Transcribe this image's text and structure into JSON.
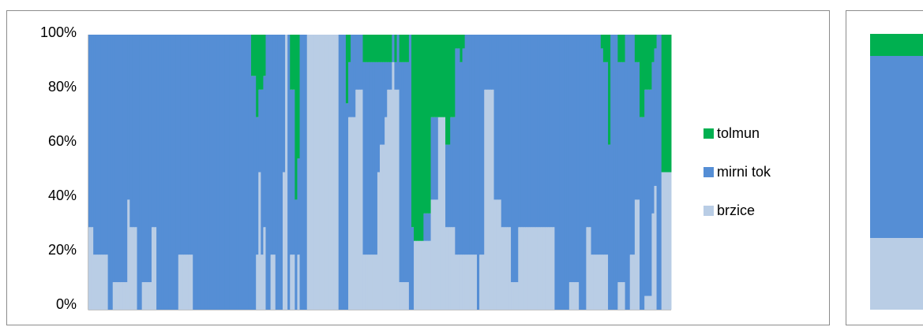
{
  "colors": {
    "tolmun": "#00b050",
    "mirni_tok": "#558ed5",
    "brzice": "#b9cde5",
    "frame": "#8c8c8c"
  },
  "chart_data": [
    {
      "type": "bar",
      "stacked": "percent",
      "title": "",
      "xlabel": "",
      "ylabel": "",
      "ylim": [
        0,
        100
      ],
      "y_tick_labels": [
        "0%",
        "20%",
        "40%",
        "60%",
        "80%",
        "100%"
      ],
      "grid": false,
      "legend_position": "right",
      "series_order_bottom_to_top": [
        "brzice",
        "mirni tok",
        "tolmun"
      ],
      "legend": [
        "tolmun",
        "mirni tok",
        "brzice"
      ],
      "bars": [
        [
          30,
          70,
          0
        ],
        [
          30,
          70,
          0
        ],
        [
          20,
          80,
          0
        ],
        [
          20,
          80,
          0
        ],
        [
          20,
          80,
          0
        ],
        [
          20,
          80,
          0
        ],
        [
          20,
          80,
          0
        ],
        [
          20,
          80,
          0
        ],
        [
          0,
          100,
          0
        ],
        [
          0,
          100,
          0
        ],
        [
          10,
          90,
          0
        ],
        [
          10,
          90,
          0
        ],
        [
          10,
          90,
          0
        ],
        [
          10,
          90,
          0
        ],
        [
          10,
          90,
          0
        ],
        [
          10,
          90,
          0
        ],
        [
          40,
          60,
          0
        ],
        [
          30,
          70,
          0
        ],
        [
          30,
          70,
          0
        ],
        [
          30,
          70,
          0
        ],
        [
          0,
          100,
          0
        ],
        [
          0,
          100,
          0
        ],
        [
          10,
          90,
          0
        ],
        [
          10,
          90,
          0
        ],
        [
          10,
          90,
          0
        ],
        [
          10,
          90,
          0
        ],
        [
          30,
          70,
          0
        ],
        [
          30,
          70,
          0
        ],
        [
          0,
          100,
          0
        ],
        [
          0,
          100,
          0
        ],
        [
          0,
          100,
          0
        ],
        [
          0,
          100,
          0
        ],
        [
          0,
          100,
          0
        ],
        [
          0,
          100,
          0
        ],
        [
          0,
          100,
          0
        ],
        [
          0,
          100,
          0
        ],
        [
          0,
          100,
          0
        ],
        [
          20,
          80,
          0
        ],
        [
          20,
          80,
          0
        ],
        [
          20,
          80,
          0
        ],
        [
          20,
          80,
          0
        ],
        [
          20,
          80,
          0
        ],
        [
          20,
          80,
          0
        ],
        [
          0,
          100,
          0
        ],
        [
          0,
          100,
          0
        ],
        [
          0,
          100,
          0
        ],
        [
          0,
          100,
          0
        ],
        [
          0,
          100,
          0
        ],
        [
          0,
          100,
          0
        ],
        [
          0,
          100,
          0
        ],
        [
          0,
          100,
          0
        ],
        [
          0,
          100,
          0
        ],
        [
          0,
          100,
          0
        ],
        [
          0,
          100,
          0
        ],
        [
          0,
          100,
          0
        ],
        [
          0,
          100,
          0
        ],
        [
          0,
          100,
          0
        ],
        [
          0,
          100,
          0
        ],
        [
          0,
          100,
          0
        ],
        [
          0,
          100,
          0
        ],
        [
          0,
          100,
          0
        ],
        [
          0,
          100,
          0
        ],
        [
          0,
          100,
          0
        ],
        [
          0,
          100,
          0
        ],
        [
          0,
          100,
          0
        ],
        [
          0,
          100,
          0
        ],
        [
          0,
          100,
          0
        ],
        [
          0,
          85,
          15
        ],
        [
          0,
          85,
          15
        ],
        [
          20,
          50,
          30
        ],
        [
          50,
          30,
          20
        ],
        [
          20,
          60,
          20
        ],
        [
          30,
          55,
          15
        ],
        [
          0,
          100,
          0
        ],
        [
          0,
          100,
          0
        ],
        [
          20,
          80,
          0
        ],
        [
          20,
          80,
          0
        ],
        [
          0,
          100,
          0
        ],
        [
          0,
          100,
          0
        ],
        [
          0,
          100,
          0
        ],
        [
          50,
          50,
          0
        ],
        [
          100,
          0,
          0
        ],
        [
          0,
          100,
          0
        ],
        [
          20,
          60,
          20
        ],
        [
          20,
          60,
          20
        ],
        [
          0,
          40,
          60
        ],
        [
          20,
          35,
          45
        ],
        [
          0,
          100,
          0
        ],
        [
          0,
          100,
          0
        ],
        [
          0,
          100,
          0
        ],
        [
          100,
          0,
          0
        ],
        [
          100,
          0,
          0
        ],
        [
          100,
          0,
          0
        ],
        [
          100,
          0,
          0
        ],
        [
          100,
          0,
          0
        ],
        [
          100,
          0,
          0
        ],
        [
          100,
          0,
          0
        ],
        [
          100,
          0,
          0
        ],
        [
          100,
          0,
          0
        ],
        [
          100,
          0,
          0
        ],
        [
          100,
          0,
          0
        ],
        [
          100,
          0,
          0
        ],
        [
          100,
          0,
          0
        ],
        [
          0,
          100,
          0
        ],
        [
          0,
          100,
          0
        ],
        [
          0,
          100,
          0
        ],
        [
          0,
          75,
          25
        ],
        [
          70,
          20,
          10
        ],
        [
          70,
          30,
          0
        ],
        [
          70,
          30,
          0
        ],
        [
          80,
          20,
          0
        ],
        [
          80,
          20,
          0
        ],
        [
          80,
          20,
          0
        ],
        [
          20,
          70,
          10
        ],
        [
          20,
          70,
          10
        ],
        [
          20,
          70,
          10
        ],
        [
          20,
          70,
          10
        ],
        [
          20,
          70,
          10
        ],
        [
          20,
          70,
          10
        ],
        [
          50,
          40,
          10
        ],
        [
          60,
          30,
          10
        ],
        [
          60,
          30,
          10
        ],
        [
          70,
          20,
          10
        ],
        [
          80,
          10,
          10
        ],
        [
          80,
          10,
          10
        ],
        [
          90,
          10,
          0
        ],
        [
          80,
          10,
          10
        ],
        [
          80,
          20,
          0
        ],
        [
          10,
          80,
          10
        ],
        [
          10,
          80,
          10
        ],
        [
          10,
          80,
          10
        ],
        [
          10,
          80,
          10
        ],
        [
          0,
          100,
          0
        ],
        [
          0,
          30,
          70
        ],
        [
          25,
          0,
          75
        ],
        [
          25,
          0,
          75
        ],
        [
          25,
          0,
          75
        ],
        [
          25,
          0,
          75
        ],
        [
          25,
          10,
          65
        ],
        [
          25,
          10,
          65
        ],
        [
          25,
          10,
          65
        ],
        [
          40,
          30,
          30
        ],
        [
          40,
          30,
          30
        ],
        [
          40,
          30,
          30
        ],
        [
          70,
          0,
          30
        ],
        [
          70,
          0,
          30
        ],
        [
          70,
          0,
          30
        ],
        [
          30,
          30,
          40
        ],
        [
          30,
          30,
          40
        ],
        [
          30,
          40,
          30
        ],
        [
          30,
          40,
          30
        ],
        [
          20,
          75,
          5
        ],
        [
          20,
          75,
          5
        ],
        [
          20,
          70,
          10
        ],
        [
          20,
          75,
          5
        ],
        [
          20,
          80,
          0
        ],
        [
          20,
          80,
          0
        ],
        [
          20,
          80,
          0
        ],
        [
          20,
          80,
          0
        ],
        [
          20,
          80,
          0
        ],
        [
          0,
          100,
          0
        ],
        [
          20,
          80,
          0
        ],
        [
          20,
          80,
          0
        ],
        [
          80,
          20,
          0
        ],
        [
          80,
          20,
          0
        ],
        [
          80,
          20,
          0
        ],
        [
          80,
          20,
          0
        ],
        [
          40,
          60,
          0
        ],
        [
          40,
          60,
          0
        ],
        [
          40,
          60,
          0
        ],
        [
          30,
          70,
          0
        ],
        [
          30,
          70,
          0
        ],
        [
          30,
          70,
          0
        ],
        [
          30,
          70,
          0
        ],
        [
          10,
          90,
          0
        ],
        [
          10,
          90,
          0
        ],
        [
          10,
          90,
          0
        ],
        [
          30,
          70,
          0
        ],
        [
          30,
          70,
          0
        ],
        [
          30,
          70,
          0
        ],
        [
          30,
          70,
          0
        ],
        [
          30,
          70,
          0
        ],
        [
          30,
          70,
          0
        ],
        [
          30,
          70,
          0
        ],
        [
          30,
          70,
          0
        ],
        [
          30,
          70,
          0
        ],
        [
          30,
          70,
          0
        ],
        [
          30,
          70,
          0
        ],
        [
          30,
          70,
          0
        ],
        [
          30,
          70,
          0
        ],
        [
          30,
          70,
          0
        ],
        [
          30,
          70,
          0
        ],
        [
          0,
          100,
          0
        ],
        [
          0,
          100,
          0
        ],
        [
          0,
          100,
          0
        ],
        [
          0,
          100,
          0
        ],
        [
          0,
          100,
          0
        ],
        [
          0,
          100,
          0
        ],
        [
          10,
          90,
          0
        ],
        [
          10,
          90,
          0
        ],
        [
          10,
          90,
          0
        ],
        [
          10,
          90,
          0
        ],
        [
          0,
          100,
          0
        ],
        [
          0,
          100,
          0
        ],
        [
          0,
          100,
          0
        ],
        [
          30,
          70,
          0
        ],
        [
          30,
          70,
          0
        ],
        [
          20,
          80,
          0
        ],
        [
          20,
          80,
          0
        ],
        [
          20,
          80,
          0
        ],
        [
          20,
          80,
          0
        ],
        [
          20,
          75,
          5
        ],
        [
          20,
          70,
          10
        ],
        [
          20,
          70,
          10
        ],
        [
          0,
          60,
          40
        ],
        [
          0,
          100,
          0
        ],
        [
          0,
          100,
          0
        ],
        [
          0,
          100,
          0
        ],
        [
          10,
          80,
          10
        ],
        [
          10,
          80,
          10
        ],
        [
          10,
          80,
          10
        ],
        [
          0,
          100,
          0
        ],
        [
          0,
          100,
          0
        ],
        [
          20,
          80,
          0
        ],
        [
          20,
          80,
          0
        ],
        [
          40,
          50,
          10
        ],
        [
          40,
          50,
          10
        ],
        [
          0,
          70,
          30
        ],
        [
          0,
          70,
          30
        ],
        [
          5,
          75,
          20
        ],
        [
          5,
          75,
          20
        ],
        [
          5,
          75,
          20
        ],
        [
          35,
          55,
          10
        ],
        [
          45,
          50,
          5
        ],
        [
          0,
          100,
          0
        ],
        [
          0,
          100,
          0
        ],
        [
          50,
          0,
          50
        ],
        [
          50,
          0,
          50
        ],
        [
          50,
          0,
          50
        ],
        [
          50,
          0,
          50
        ]
      ]
    },
    {
      "type": "bar",
      "stacked": "percent",
      "title": "",
      "note": "partially visible second chart, right edge of screenshot",
      "series_order_bottom_to_top": [
        "brzice",
        "mirni tok",
        "tolmun"
      ],
      "bars": [
        [
          26,
          66,
          8
        ]
      ]
    }
  ]
}
